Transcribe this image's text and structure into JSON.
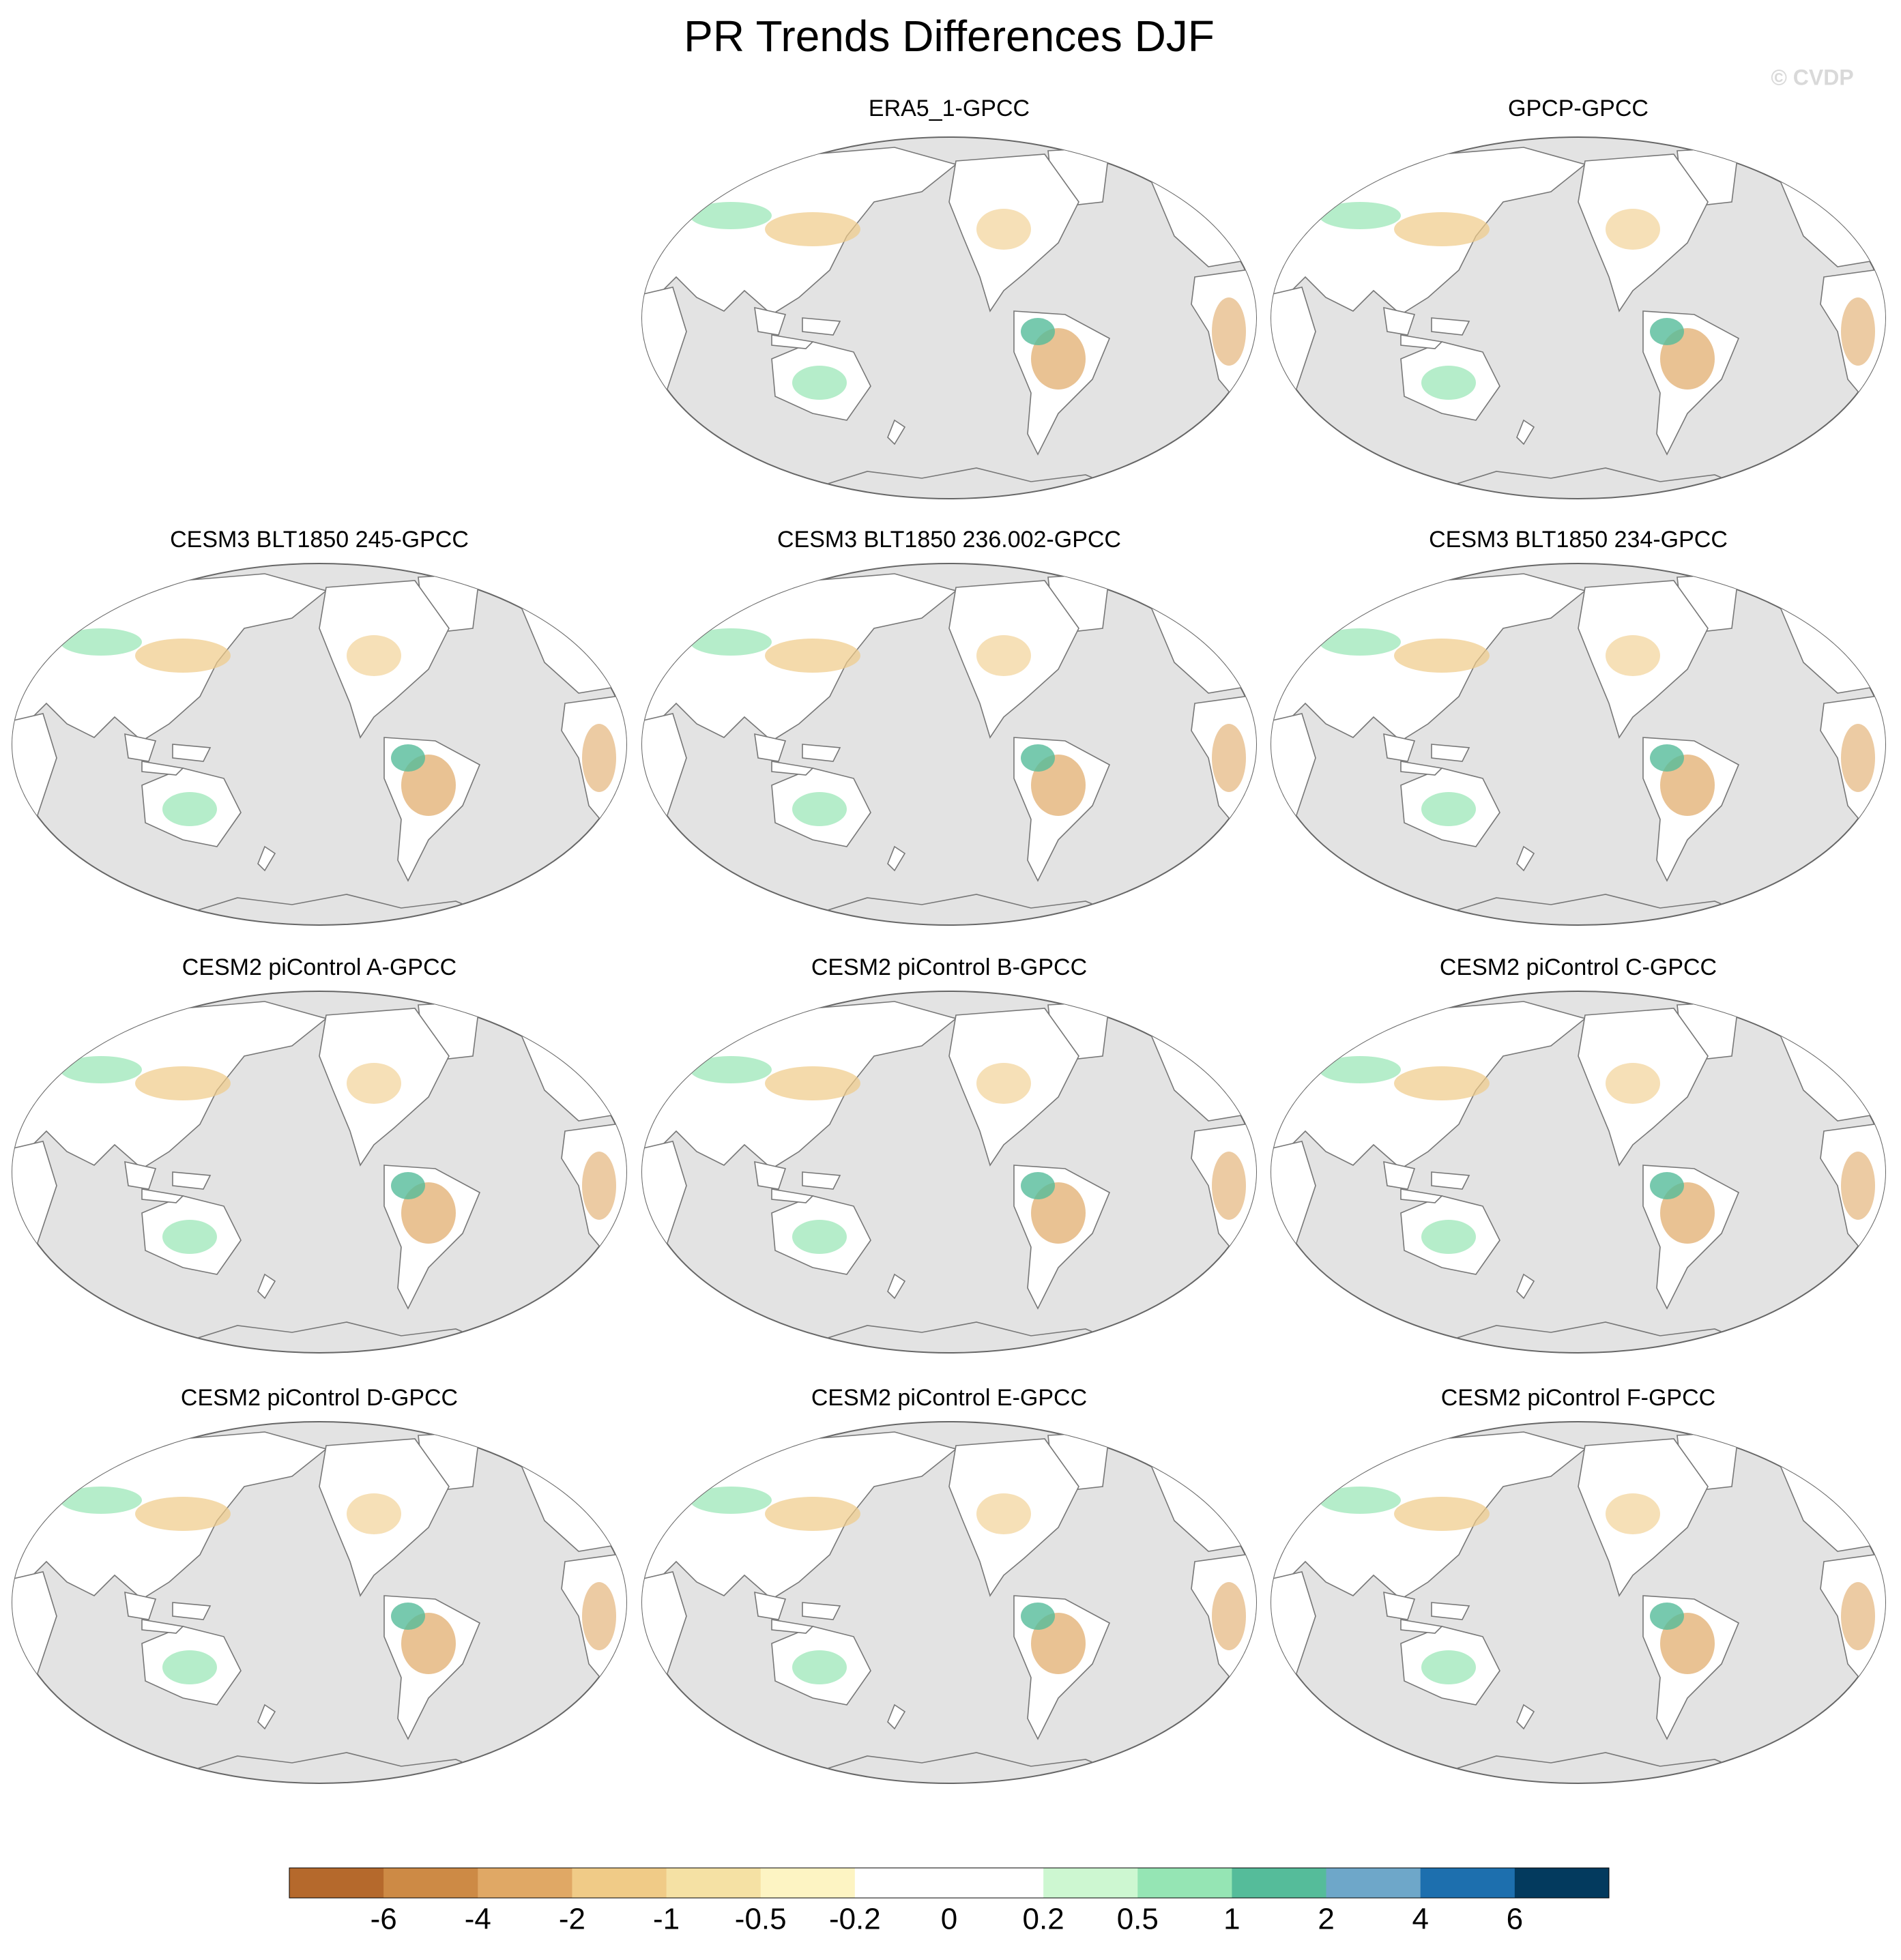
{
  "title": "PR Trends Differences DJF",
  "watermark": "© CVDP",
  "panels": [
    {
      "title": "ERA5_1-GPCC"
    },
    {
      "title": "GPCP-GPCC"
    },
    {
      "title": "CESM3 BLT1850 245-GPCC"
    },
    {
      "title": "CESM3 BLT1850 236.002-GPCC"
    },
    {
      "title": "CESM3 BLT1850 234-GPCC"
    },
    {
      "title": "CESM2 piControl A-GPCC"
    },
    {
      "title": "CESM2 piControl B-GPCC"
    },
    {
      "title": "CESM2 piControl C-GPCC"
    },
    {
      "title": "CESM2 piControl D-GPCC"
    },
    {
      "title": "CESM2 piControl E-GPCC"
    },
    {
      "title": "CESM2 piControl F-GPCC"
    }
  ],
  "colorbar": {
    "levels": [
      -6,
      -4,
      -2,
      -1,
      -0.5,
      -0.2,
      0,
      0.2,
      0.5,
      1,
      2,
      4,
      6
    ],
    "colors": [
      "#b5692c",
      "#cd8a45",
      "#e0a865",
      "#f0cb87",
      "#f5e1a4",
      "#fdf4c3",
      "#ffffff",
      "#ffffff",
      "#cdf7d1",
      "#95e5b4",
      "#55bc9a",
      "#6ea7c9",
      "#1d6fae",
      "#033a5e"
    ]
  }
}
